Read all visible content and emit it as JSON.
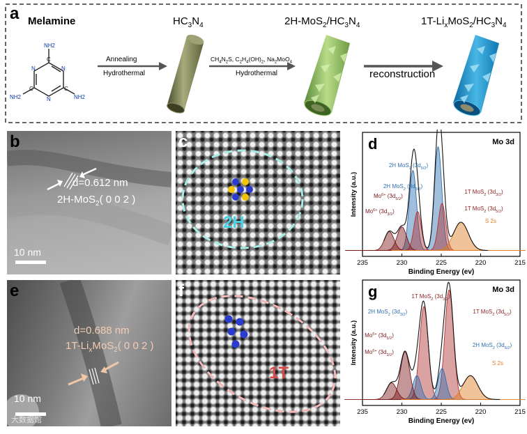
{
  "scheme": {
    "letter": "a",
    "melamine": "Melamine",
    "atom_n": "N",
    "atom_c": "C",
    "atom_nh2": "NH2",
    "hc3n4": [
      "HC",
      "3",
      "N",
      "4"
    ],
    "mos2_2h": [
      "2H-MoS",
      "2",
      "/HC",
      "3",
      "N",
      "4"
    ],
    "mos2_1t": [
      "1T-Li",
      "x",
      "MoS",
      "2",
      "/HC",
      "3",
      "N",
      "4"
    ],
    "step1_top": "Annealing",
    "step1_bottom": "Hydrothermal",
    "step2_reagents": [
      "CH",
      "4",
      "N",
      "2",
      "S, C",
      "2",
      "H",
      "4",
      "(OH)",
      "2",
      ", Na",
      "2",
      "MoO",
      "4"
    ],
    "step2_bottom": "Hydrothermal",
    "step3": "reconstruction"
  },
  "panel_b": {
    "letter": "b",
    "d_spacing": "d=0.612 nm",
    "phase": [
      "2H-MoS",
      "2",
      "( 0 0 2 )"
    ],
    "scale_bar": "10 nm"
  },
  "panel_c": {
    "letter": "c",
    "phase_label": "2H"
  },
  "panel_e": {
    "letter": "e",
    "d_spacing": "d=0.688 nm",
    "phase": [
      "1T-Li",
      "x",
      "MoS",
      "2",
      "( 0 0 2 )"
    ],
    "scale_bar": "10 nm"
  },
  "panel_f": {
    "letter": "f",
    "phase_label": "1T"
  },
  "watermark": "大数据馆",
  "panel_d": {
    "letter": "d",
    "corner_label": "Mo 3d",
    "xlabel": "Binding Energy (ev)",
    "ylabel": "Intensity (a.u.)",
    "annotations": [
      "2H MoS2 (3d5/2)",
      "2H MoS2 (3d3/2)",
      "Mo6+ (3d5/2)",
      "Mo6+ (3d3/2)",
      "1T MoS2 (3d3/2)",
      "1T MoS2 (3d5/2)",
      "S 2s"
    ]
  },
  "panel_g": {
    "letter": "g",
    "corner_label": "Mo 3d",
    "xlabel": "Binding Energy (ev)",
    "ylabel": "Intensity (a.u.)",
    "annotations": [
      "1T MoS2 (3d3/2)",
      "2H MoS2 (3d3/2)",
      "Mo6+ (3d5/2)",
      "Mo6+ (3d3/2)",
      "1T MoS2 (3d5/2)",
      "2H MoS2 (3d5/2)",
      "S 2s"
    ]
  },
  "chart_data": [
    {
      "type": "line",
      "title": "",
      "xlabel": "Binding Energy (ev)",
      "ylabel": "Intensity (a.u.)",
      "xlim": [
        235,
        215
      ],
      "xticks": [
        235,
        230,
        225,
        220,
        215
      ],
      "x_reversed": true,
      "series": [
        {
          "name": "2H MoS2 (3d3/2)",
          "center": 228.6,
          "height": 0.68,
          "fwhm": 1.1,
          "color": "#2f6fb0"
        },
        {
          "name": "2H MoS2 (3d5/2)",
          "center": 225.4,
          "height": 0.88,
          "fwhm": 1.1,
          "color": "#2f6fb0"
        },
        {
          "name": "1T MoS2 (3d3/2)",
          "center": 228.0,
          "height": 0.33,
          "fwhm": 1.1,
          "color": "#b03030"
        },
        {
          "name": "1T MoS2 (3d5/2)",
          "center": 224.9,
          "height": 0.4,
          "fwhm": 1.1,
          "color": "#b03030"
        },
        {
          "name": "Mo6+ (3d3/2)",
          "center": 231.6,
          "height": 0.16,
          "fwhm": 1.4,
          "color": "#7a1818"
        },
        {
          "name": "Mo6+ (3d5/2)",
          "center": 230.0,
          "height": 0.2,
          "fwhm": 1.4,
          "color": "#7a1818"
        },
        {
          "name": "S 2s",
          "center": 222.5,
          "height": 0.24,
          "fwhm": 2.2,
          "color": "#e07b20"
        }
      ],
      "baseline": 0.05,
      "envelope_end": 219.0
    },
    {
      "type": "line",
      "title": "",
      "xlabel": "Binding Energy (ev)",
      "ylabel": "Intensity (a.u.)",
      "xlim": [
        235,
        215
      ],
      "xticks": [
        235,
        230,
        225,
        220,
        215
      ],
      "x_reversed": true,
      "series": [
        {
          "name": "1T MoS2 (3d3/2)",
          "center": 227.2,
          "height": 0.78,
          "fwhm": 1.3,
          "color": "#b03030"
        },
        {
          "name": "1T MoS2 (3d5/2)",
          "center": 224.0,
          "height": 0.92,
          "fwhm": 1.3,
          "color": "#b03030"
        },
        {
          "name": "2H MoS2 (3d3/2)",
          "center": 228.1,
          "height": 0.2,
          "fwhm": 1.2,
          "color": "#2f6fb0"
        },
        {
          "name": "2H MoS2 (3d5/2)",
          "center": 224.9,
          "height": 0.26,
          "fwhm": 1.2,
          "color": "#2f6fb0"
        },
        {
          "name": "Mo6+ (3d3/2)",
          "center": 231.3,
          "height": 0.14,
          "fwhm": 1.5,
          "color": "#7a1818"
        },
        {
          "name": "Mo6+ (3d5/2)",
          "center": 229.6,
          "height": 0.4,
          "fwhm": 1.4,
          "color": "#7a1818"
        },
        {
          "name": "S 2s",
          "center": 221.3,
          "height": 0.2,
          "fwhm": 2.2,
          "color": "#e07b20"
        }
      ],
      "baseline": 0.05,
      "envelope_end": 217.5
    }
  ]
}
